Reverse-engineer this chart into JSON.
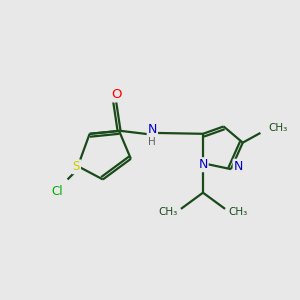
{
  "background_color": "#e8e8e8",
  "bond_color": "#1a4a1a",
  "atom_colors": {
    "O": "#ff0000",
    "N": "#0000cc",
    "S": "#cccc00",
    "Cl": "#00aa00",
    "C": "#1a4a1a",
    "H": "#606060"
  },
  "figsize": [
    3.0,
    3.0
  ],
  "dpi": 100,
  "xlim": [
    0,
    10
  ],
  "ylim": [
    0,
    10
  ]
}
